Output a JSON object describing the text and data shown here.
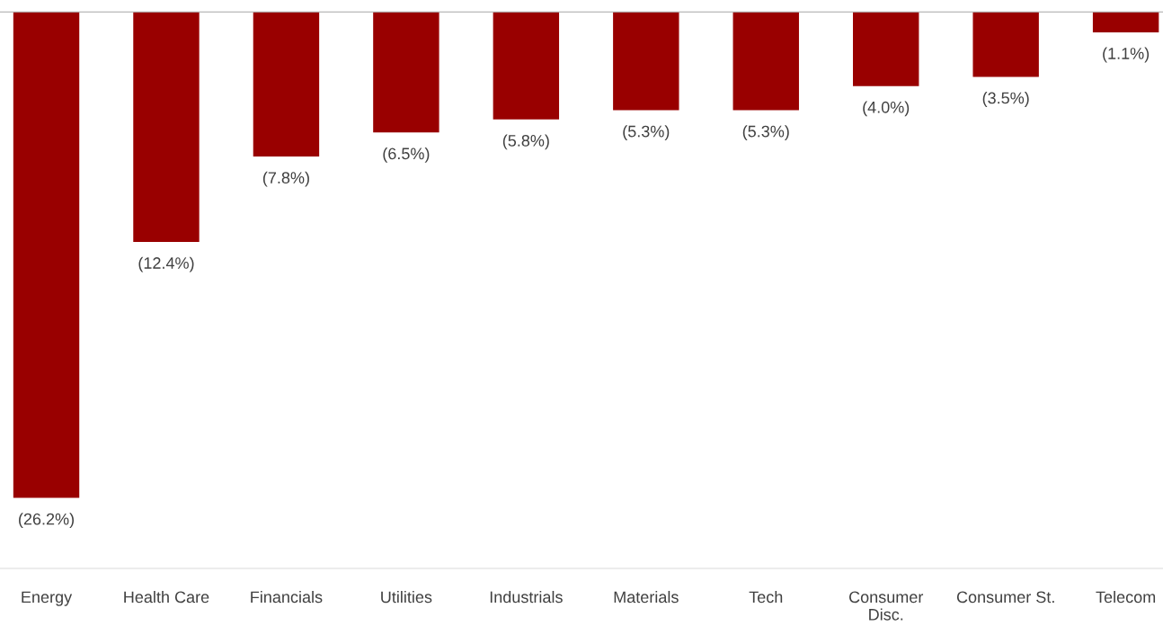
{
  "chart_data": {
    "type": "bar",
    "categories": [
      "Energy",
      "Health Care",
      "Financials",
      "Utilities",
      "Industrials",
      "Materials",
      "Tech",
      "Consumer\nDisc.",
      "Consumer St.",
      "Telecom"
    ],
    "values": [
      -26.2,
      -12.4,
      -7.8,
      -6.5,
      -5.8,
      -5.3,
      -5.3,
      -4.0,
      -3.5,
      -1.1
    ],
    "value_labels": [
      "(26.2%)",
      "(12.4%)",
      "(7.8%)",
      "(6.5%)",
      "(5.8%)",
      "(5.3%)",
      "(5.3%)",
      "(4.0%)",
      "(3.5%)",
      "(1.1%)"
    ],
    "color": "#990000",
    "ylim": [
      -30,
      0
    ],
    "tick_labels": "x",
    "grid": false,
    "legend": false
  }
}
